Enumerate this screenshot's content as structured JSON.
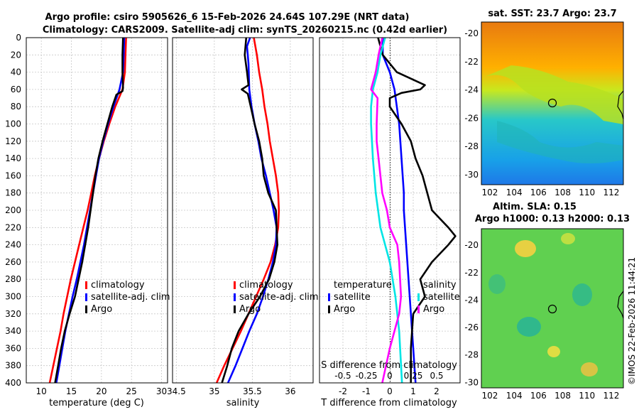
{
  "header": {
    "title_line1": "Argo profile: csiro 5905626_6 15-Feb-2026 24.64S 107.29E (NRT data)",
    "title_line2": "Climatology: CARS2009. Satellite-adj clim: synTS_20260215.nc (0.42d earlier)"
  },
  "colors": {
    "climatology": "#ff0000",
    "satellite": "#0000ff",
    "argo": "#000000",
    "s_clim": "#ff00ff",
    "s_sat": "#00e5e5"
  },
  "chart_data": [
    {
      "id": "temperature",
      "type": "line",
      "xlabel": "temperature (deg C)",
      "xlim": [
        7.5,
        31
      ],
      "xticks": [
        10,
        15,
        20,
        25,
        30
      ],
      "ylim": [
        0,
        400
      ],
      "yticks": [
        0,
        20,
        40,
        60,
        80,
        100,
        120,
        140,
        160,
        180,
        200,
        220,
        240,
        260,
        280,
        300,
        320,
        340,
        360,
        380,
        400
      ],
      "legend": [
        "climatology",
        "satellite-adj. clim",
        "Argo"
      ],
      "series": [
        {
          "name": "climatology",
          "color": "#ff0000",
          "points": [
            [
              24.1,
              0
            ],
            [
              24.0,
              20
            ],
            [
              23.9,
              40
            ],
            [
              23.5,
              60
            ],
            [
              22.3,
              80
            ],
            [
              21.3,
              100
            ],
            [
              20.4,
              120
            ],
            [
              19.6,
              140
            ],
            [
              18.9,
              160
            ],
            [
              18.3,
              180
            ],
            [
              17.7,
              200
            ],
            [
              17.0,
              220
            ],
            [
              16.3,
              240
            ],
            [
              15.6,
              260
            ],
            [
              14.9,
              280
            ],
            [
              14.3,
              300
            ],
            [
              13.7,
              320
            ],
            [
              13.2,
              340
            ],
            [
              12.6,
              360
            ],
            [
              12.0,
              380
            ],
            [
              11.4,
              400
            ]
          ]
        },
        {
          "name": "satellite-adj. clim",
          "color": "#0000ff",
          "points": [
            [
              23.8,
              0
            ],
            [
              23.7,
              20
            ],
            [
              23.6,
              40
            ],
            [
              23.0,
              60
            ],
            [
              22.0,
              80
            ],
            [
              21.1,
              100
            ],
            [
              20.3,
              120
            ],
            [
              19.6,
              140
            ],
            [
              19.1,
              160
            ],
            [
              18.6,
              180
            ],
            [
              18.1,
              200
            ],
            [
              17.6,
              220
            ],
            [
              17.1,
              240
            ],
            [
              16.5,
              260
            ],
            [
              15.9,
              280
            ],
            [
              15.2,
              300
            ],
            [
              14.6,
              320
            ],
            [
              14.0,
              340
            ],
            [
              13.5,
              360
            ],
            [
              13.0,
              380
            ],
            [
              12.5,
              400
            ]
          ]
        },
        {
          "name": "Argo",
          "color": "#000000",
          "points": [
            [
              23.6,
              0
            ],
            [
              23.5,
              20
            ],
            [
              23.5,
              40
            ],
            [
              23.6,
              58
            ],
            [
              23.5,
              62
            ],
            [
              22.5,
              66
            ],
            [
              21.8,
              80
            ],
            [
              21.0,
              100
            ],
            [
              20.2,
              120
            ],
            [
              19.5,
              140
            ],
            [
              19.0,
              160
            ],
            [
              18.6,
              180
            ],
            [
              18.2,
              200
            ],
            [
              17.8,
              220
            ],
            [
              17.3,
              240
            ],
            [
              16.8,
              260
            ],
            [
              16.2,
              280
            ],
            [
              15.6,
              300
            ],
            [
              14.7,
              320
            ],
            [
              13.9,
              340
            ],
            [
              13.3,
              360
            ],
            [
              12.8,
              380
            ],
            [
              12.3,
              400
            ]
          ]
        }
      ]
    },
    {
      "id": "salinity",
      "type": "line",
      "xlabel": "salinity",
      "xlim": [
        34.45,
        36.3
      ],
      "xticks": [
        34.5,
        35,
        35.5,
        36
      ],
      "xtick_labels": [
        "34.5",
        "35",
        "35.5",
        "36"
      ],
      "ylim": [
        0,
        400
      ],
      "legend": [
        "climatology",
        "satellite-adj. clim",
        "Argo"
      ],
      "series": [
        {
          "name": "climatology",
          "color": "#ff0000",
          "points": [
            [
              35.52,
              0
            ],
            [
              35.56,
              20
            ],
            [
              35.59,
              40
            ],
            [
              35.63,
              60
            ],
            [
              35.66,
              80
            ],
            [
              35.7,
              100
            ],
            [
              35.73,
              120
            ],
            [
              35.77,
              140
            ],
            [
              35.81,
              160
            ],
            [
              35.84,
              180
            ],
            [
              35.85,
              200
            ],
            [
              35.84,
              220
            ],
            [
              35.8,
              240
            ],
            [
              35.74,
              260
            ],
            [
              35.65,
              280
            ],
            [
              35.55,
              300
            ],
            [
              35.45,
              320
            ],
            [
              35.35,
              340
            ],
            [
              35.24,
              360
            ],
            [
              35.13,
              380
            ],
            [
              35.03,
              400
            ]
          ]
        },
        {
          "name": "satellite-adj. clim",
          "color": "#0000ff",
          "points": [
            [
              35.47,
              0
            ],
            [
              35.43,
              10
            ],
            [
              35.45,
              30
            ],
            [
              35.46,
              60
            ],
            [
              35.49,
              80
            ],
            [
              35.53,
              100
            ],
            [
              35.58,
              120
            ],
            [
              35.62,
              140
            ],
            [
              35.68,
              160
            ],
            [
              35.73,
              180
            ],
            [
              35.78,
              200
            ],
            [
              35.82,
              220
            ],
            [
              35.81,
              240
            ],
            [
              35.77,
              260
            ],
            [
              35.71,
              280
            ],
            [
              35.64,
              300
            ],
            [
              35.56,
              320
            ],
            [
              35.46,
              340
            ],
            [
              35.37,
              360
            ],
            [
              35.28,
              380
            ],
            [
              35.18,
              400
            ]
          ]
        },
        {
          "name": "Argo",
          "color": "#000000",
          "points": [
            [
              35.42,
              0
            ],
            [
              35.4,
              20
            ],
            [
              35.43,
              40
            ],
            [
              35.45,
              55
            ],
            [
              35.36,
              60
            ],
            [
              35.44,
              65
            ],
            [
              35.48,
              80
            ],
            [
              35.53,
              100
            ],
            [
              35.59,
              120
            ],
            [
              35.63,
              140
            ],
            [
              35.65,
              160
            ],
            [
              35.71,
              180
            ],
            [
              35.81,
              200
            ],
            [
              35.82,
              220
            ],
            [
              35.83,
              240
            ],
            [
              35.79,
              260
            ],
            [
              35.72,
              280
            ],
            [
              35.6,
              300
            ],
            [
              35.45,
              320
            ],
            [
              35.32,
              340
            ],
            [
              35.23,
              360
            ],
            [
              35.17,
              380
            ],
            [
              35.1,
              400
            ]
          ]
        }
      ]
    },
    {
      "id": "difference",
      "type": "line",
      "xlabel": "T difference from climatology",
      "xlabel_top": "S difference from climatology",
      "xlim": [
        -3,
        3
      ],
      "xticks": [
        -2,
        -1,
        0,
        1,
        2
      ],
      "top_xticks": [
        -0.5,
        -0.25,
        0,
        0.25,
        0.5
      ],
      "top_xtick_labels": [
        "-0.5",
        "-0.25",
        "0",
        "0.25",
        "0.5"
      ],
      "top_xlim": [
        -0.75,
        0.75
      ],
      "ylim": [
        0,
        400
      ],
      "legend_left_title": "temperature",
      "legend_left": [
        "satellite",
        "Argo"
      ],
      "legend_right_title": "salinity",
      "legend_right": [
        "satellite",
        "Argo"
      ],
      "series": [
        {
          "name": "T satellite",
          "color": "#0000ff",
          "points": [
            [
              -0.3,
              0
            ],
            [
              -0.3,
              20
            ],
            [
              0.0,
              40
            ],
            [
              0.2,
              60
            ],
            [
              0.3,
              80
            ],
            [
              0.4,
              100
            ],
            [
              0.5,
              140
            ],
            [
              0.6,
              180
            ],
            [
              0.6,
              200
            ],
            [
              0.7,
              240
            ],
            [
              0.8,
              280
            ],
            [
              0.9,
              320
            ],
            [
              1.0,
              360
            ],
            [
              1.1,
              400
            ]
          ]
        },
        {
          "name": "T Argo",
          "color": "#000000",
          "points": [
            [
              -0.5,
              0
            ],
            [
              -0.3,
              20
            ],
            [
              0.3,
              40
            ],
            [
              1.5,
              55
            ],
            [
              1.3,
              60
            ],
            [
              0.5,
              64
            ],
            [
              0.0,
              70
            ],
            [
              0.0,
              80
            ],
            [
              0.5,
              100
            ],
            [
              0.9,
              120
            ],
            [
              1.1,
              140
            ],
            [
              1.4,
              160
            ],
            [
              1.8,
              200
            ],
            [
              2.5,
              220
            ],
            [
              2.8,
              230
            ],
            [
              2.5,
              240
            ],
            [
              1.8,
              260
            ],
            [
              1.3,
              280
            ],
            [
              1.5,
              300
            ],
            [
              1.0,
              320
            ],
            [
              0.9,
              360
            ],
            [
              0.9,
              400
            ]
          ]
        },
        {
          "name": "S satellite",
          "color": "#00e5e5",
          "points": [
            [
              -0.05,
              0
            ],
            [
              -0.1,
              20
            ],
            [
              -0.13,
              40
            ],
            [
              -0.18,
              60
            ],
            [
              -0.2,
              80
            ],
            [
              -0.2,
              100
            ],
            [
              -0.18,
              140
            ],
            [
              -0.15,
              180
            ],
            [
              -0.1,
              220
            ],
            [
              0.0,
              260
            ],
            [
              0.06,
              300
            ],
            [
              0.1,
              340
            ],
            [
              0.13,
              400
            ]
          ]
        },
        {
          "name": "S Argo",
          "color": "#ff00ff",
          "points": [
            [
              -0.08,
              0
            ],
            [
              -0.12,
              20
            ],
            [
              -0.15,
              40
            ],
            [
              -0.2,
              60
            ],
            [
              -0.13,
              70
            ],
            [
              -0.14,
              100
            ],
            [
              -0.14,
              120
            ],
            [
              -0.12,
              140
            ],
            [
              -0.08,
              180
            ],
            [
              -0.03,
              200
            ],
            [
              0.0,
              220
            ],
            [
              0.08,
              240
            ],
            [
              0.1,
              260
            ],
            [
              0.12,
              300
            ],
            [
              0.1,
              320
            ],
            [
              0.0,
              360
            ],
            [
              -0.08,
              400
            ]
          ]
        }
      ]
    }
  ],
  "maps": {
    "sst": {
      "title": "sat. SST: 23.7 Argo: 23.7",
      "yticks": [
        -20,
        -22,
        -24,
        -26,
        -28,
        -30
      ],
      "xticks": [
        102,
        104,
        106,
        108,
        110,
        112
      ]
    },
    "sla": {
      "title_line1": "Altim. SLA: 0.15",
      "title_line2": "Argo h1000: 0.13 h2000: 0.13",
      "yticks": [
        -20,
        -22,
        -24,
        -26,
        -28,
        -30
      ],
      "xticks": [
        102,
        104,
        106,
        108,
        110,
        112
      ]
    },
    "timestamp": "©IMOS 22-Feb-2026 11:44:21"
  }
}
